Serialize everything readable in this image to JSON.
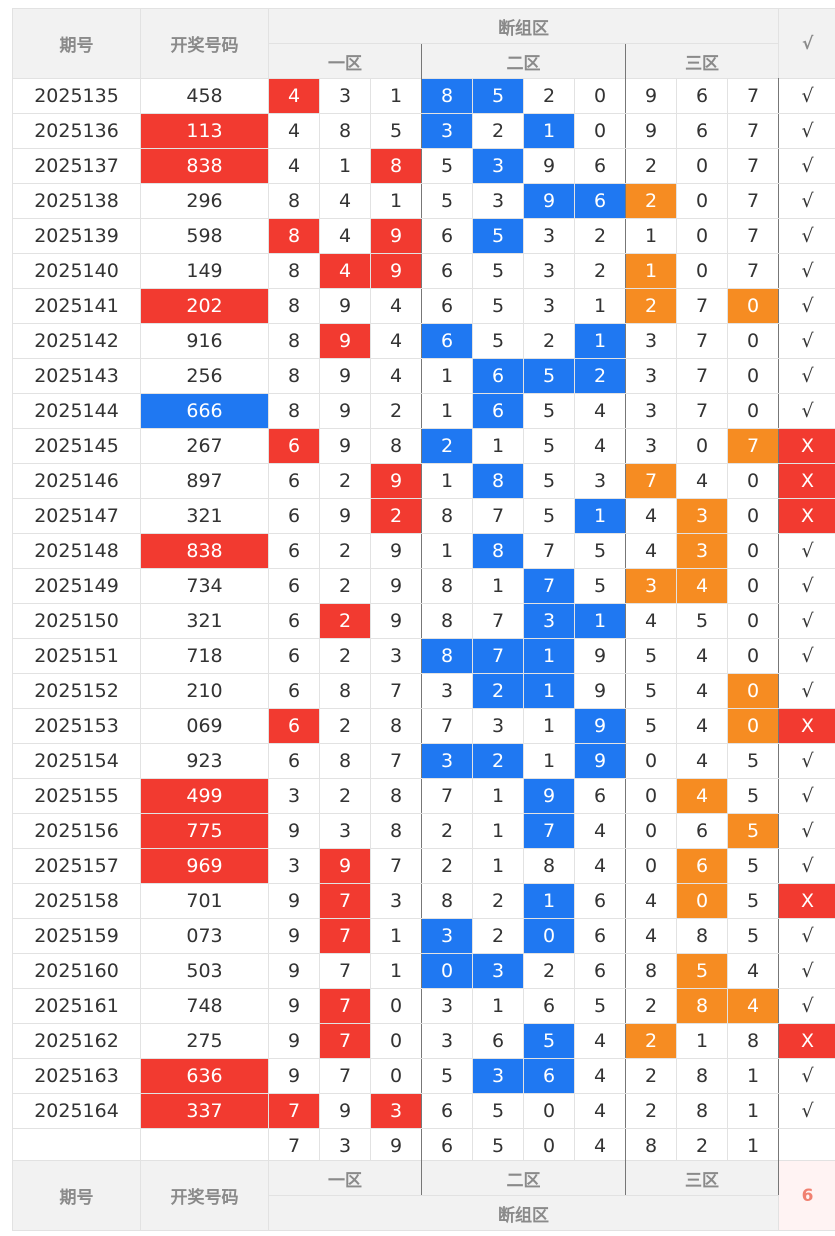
{
  "header": {
    "period": "期号",
    "number": "开奖号码",
    "section": "断组区",
    "zone1": "一区",
    "zone2": "二区",
    "zone3": "三区",
    "check": "√"
  },
  "rows": [
    {
      "period": "2025135",
      "number": "458",
      "nhl": "",
      "cells": [
        "4",
        "3",
        "1",
        "8",
        "5",
        "2",
        "0",
        "9",
        "6",
        "7"
      ],
      "hl": [
        "r",
        "",
        "",
        "b",
        "b",
        "",
        "",
        "",
        "",
        ""
      ],
      "status": "√"
    },
    {
      "period": "2025136",
      "number": "113",
      "nhl": "r",
      "cells": [
        "4",
        "8",
        "5",
        "3",
        "2",
        "1",
        "0",
        "9",
        "6",
        "7"
      ],
      "hl": [
        "",
        "",
        "",
        "b",
        "",
        "b",
        "",
        "",
        "",
        ""
      ],
      "status": "√"
    },
    {
      "period": "2025137",
      "number": "838",
      "nhl": "r",
      "cells": [
        "4",
        "1",
        "8",
        "5",
        "3",
        "9",
        "6",
        "2",
        "0",
        "7"
      ],
      "hl": [
        "",
        "",
        "r",
        "",
        "b",
        "",
        "",
        "",
        "",
        ""
      ],
      "status": "√"
    },
    {
      "period": "2025138",
      "number": "296",
      "nhl": "",
      "cells": [
        "8",
        "4",
        "1",
        "5",
        "3",
        "9",
        "6",
        "2",
        "0",
        "7"
      ],
      "hl": [
        "",
        "",
        "",
        "",
        "",
        "b",
        "b",
        "o",
        "",
        ""
      ],
      "status": "√"
    },
    {
      "period": "2025139",
      "number": "598",
      "nhl": "",
      "cells": [
        "8",
        "4",
        "9",
        "6",
        "5",
        "3",
        "2",
        "1",
        "0",
        "7"
      ],
      "hl": [
        "r",
        "",
        "r",
        "",
        "b",
        "",
        "",
        "",
        "",
        ""
      ],
      "status": "√"
    },
    {
      "period": "2025140",
      "number": "149",
      "nhl": "",
      "cells": [
        "8",
        "4",
        "9",
        "6",
        "5",
        "3",
        "2",
        "1",
        "0",
        "7"
      ],
      "hl": [
        "",
        "r",
        "r",
        "",
        "",
        "",
        "",
        "o",
        "",
        ""
      ],
      "status": "√"
    },
    {
      "period": "2025141",
      "number": "202",
      "nhl": "r",
      "cells": [
        "8",
        "9",
        "4",
        "6",
        "5",
        "3",
        "1",
        "2",
        "7",
        "0"
      ],
      "hl": [
        "",
        "",
        "",
        "",
        "",
        "",
        "",
        "o",
        "",
        "o"
      ],
      "status": "√"
    },
    {
      "period": "2025142",
      "number": "916",
      "nhl": "",
      "cells": [
        "8",
        "9",
        "4",
        "6",
        "5",
        "2",
        "1",
        "3",
        "7",
        "0"
      ],
      "hl": [
        "",
        "r",
        "",
        "b",
        "",
        "",
        "b",
        "",
        "",
        ""
      ],
      "status": "√"
    },
    {
      "period": "2025143",
      "number": "256",
      "nhl": "",
      "cells": [
        "8",
        "9",
        "4",
        "1",
        "6",
        "5",
        "2",
        "3",
        "7",
        "0"
      ],
      "hl": [
        "",
        "",
        "",
        "",
        "b",
        "b",
        "b",
        "",
        "",
        ""
      ],
      "status": "√"
    },
    {
      "period": "2025144",
      "number": "666",
      "nhl": "b",
      "cells": [
        "8",
        "9",
        "2",
        "1",
        "6",
        "5",
        "4",
        "3",
        "7",
        "0"
      ],
      "hl": [
        "",
        "",
        "",
        "",
        "b",
        "",
        "",
        "",
        "",
        ""
      ],
      "status": "√"
    },
    {
      "period": "2025145",
      "number": "267",
      "nhl": "",
      "cells": [
        "6",
        "9",
        "8",
        "2",
        "1",
        "5",
        "4",
        "3",
        "0",
        "7"
      ],
      "hl": [
        "r",
        "",
        "",
        "b",
        "",
        "",
        "",
        "",
        "",
        "o"
      ],
      "status": "X"
    },
    {
      "period": "2025146",
      "number": "897",
      "nhl": "",
      "cells": [
        "6",
        "2",
        "9",
        "1",
        "8",
        "5",
        "3",
        "7",
        "4",
        "0"
      ],
      "hl": [
        "",
        "",
        "r",
        "",
        "b",
        "",
        "",
        "o",
        "",
        ""
      ],
      "status": "X"
    },
    {
      "period": "2025147",
      "number": "321",
      "nhl": "",
      "cells": [
        "6",
        "9",
        "2",
        "8",
        "7",
        "5",
        "1",
        "4",
        "3",
        "0"
      ],
      "hl": [
        "",
        "",
        "r",
        "",
        "",
        "",
        "b",
        "",
        "o",
        ""
      ],
      "status": "X"
    },
    {
      "period": "2025148",
      "number": "838",
      "nhl": "r",
      "cells": [
        "6",
        "2",
        "9",
        "1",
        "8",
        "7",
        "5",
        "4",
        "3",
        "0"
      ],
      "hl": [
        "",
        "",
        "",
        "",
        "b",
        "",
        "",
        "",
        "o",
        ""
      ],
      "status": "√"
    },
    {
      "period": "2025149",
      "number": "734",
      "nhl": "",
      "cells": [
        "6",
        "2",
        "9",
        "8",
        "1",
        "7",
        "5",
        "3",
        "4",
        "0"
      ],
      "hl": [
        "",
        "",
        "",
        "",
        "",
        "b",
        "",
        "o",
        "o",
        ""
      ],
      "status": "√"
    },
    {
      "period": "2025150",
      "number": "321",
      "nhl": "",
      "cells": [
        "6",
        "2",
        "9",
        "8",
        "7",
        "3",
        "1",
        "4",
        "5",
        "0"
      ],
      "hl": [
        "",
        "r",
        "",
        "",
        "",
        "b",
        "b",
        "",
        "",
        ""
      ],
      "status": "√"
    },
    {
      "period": "2025151",
      "number": "718",
      "nhl": "",
      "cells": [
        "6",
        "2",
        "3",
        "8",
        "7",
        "1",
        "9",
        "5",
        "4",
        "0"
      ],
      "hl": [
        "",
        "",
        "",
        "b",
        "b",
        "b",
        "",
        "",
        "",
        ""
      ],
      "status": "√"
    },
    {
      "period": "2025152",
      "number": "210",
      "nhl": "",
      "cells": [
        "6",
        "8",
        "7",
        "3",
        "2",
        "1",
        "9",
        "5",
        "4",
        "0"
      ],
      "hl": [
        "",
        "",
        "",
        "",
        "b",
        "b",
        "",
        "",
        "",
        "o"
      ],
      "status": "√"
    },
    {
      "period": "2025153",
      "number": "069",
      "nhl": "",
      "cells": [
        "6",
        "2",
        "8",
        "7",
        "3",
        "1",
        "9",
        "5",
        "4",
        "0"
      ],
      "hl": [
        "r",
        "",
        "",
        "",
        "",
        "",
        "b",
        "",
        "",
        "o"
      ],
      "status": "X"
    },
    {
      "period": "2025154",
      "number": "923",
      "nhl": "",
      "cells": [
        "6",
        "8",
        "7",
        "3",
        "2",
        "1",
        "9",
        "0",
        "4",
        "5"
      ],
      "hl": [
        "",
        "",
        "",
        "b",
        "b",
        "",
        "b",
        "",
        "",
        ""
      ],
      "status": "√"
    },
    {
      "period": "2025155",
      "number": "499",
      "nhl": "r",
      "cells": [
        "3",
        "2",
        "8",
        "7",
        "1",
        "9",
        "6",
        "0",
        "4",
        "5"
      ],
      "hl": [
        "",
        "",
        "",
        "",
        "",
        "b",
        "",
        "",
        "o",
        ""
      ],
      "status": "√"
    },
    {
      "period": "2025156",
      "number": "775",
      "nhl": "r",
      "cells": [
        "9",
        "3",
        "8",
        "2",
        "1",
        "7",
        "4",
        "0",
        "6",
        "5"
      ],
      "hl": [
        "",
        "",
        "",
        "",
        "",
        "b",
        "",
        "",
        "",
        "o"
      ],
      "status": "√"
    },
    {
      "period": "2025157",
      "number": "969",
      "nhl": "r",
      "cells": [
        "3",
        "9",
        "7",
        "2",
        "1",
        "8",
        "4",
        "0",
        "6",
        "5"
      ],
      "hl": [
        "",
        "r",
        "",
        "",
        "",
        "",
        "",
        "",
        "o",
        ""
      ],
      "status": "√"
    },
    {
      "period": "2025158",
      "number": "701",
      "nhl": "",
      "cells": [
        "9",
        "7",
        "3",
        "8",
        "2",
        "1",
        "6",
        "4",
        "0",
        "5"
      ],
      "hl": [
        "",
        "r",
        "",
        "",
        "",
        "b",
        "",
        "",
        "o",
        ""
      ],
      "status": "X"
    },
    {
      "period": "2025159",
      "number": "073",
      "nhl": "",
      "cells": [
        "9",
        "7",
        "1",
        "3",
        "2",
        "0",
        "6",
        "4",
        "8",
        "5"
      ],
      "hl": [
        "",
        "r",
        "",
        "b",
        "",
        "b",
        "",
        "",
        "",
        ""
      ],
      "status": "√"
    },
    {
      "period": "2025160",
      "number": "503",
      "nhl": "",
      "cells": [
        "9",
        "7",
        "1",
        "0",
        "3",
        "2",
        "6",
        "8",
        "5",
        "4"
      ],
      "hl": [
        "",
        "",
        "",
        "b",
        "b",
        "",
        "",
        "",
        "o",
        ""
      ],
      "status": "√"
    },
    {
      "period": "2025161",
      "number": "748",
      "nhl": "",
      "cells": [
        "9",
        "7",
        "0",
        "3",
        "1",
        "6",
        "5",
        "2",
        "8",
        "4"
      ],
      "hl": [
        "",
        "r",
        "",
        "",
        "",
        "",
        "",
        "",
        "o",
        "o"
      ],
      "status": "√"
    },
    {
      "period": "2025162",
      "number": "275",
      "nhl": "",
      "cells": [
        "9",
        "7",
        "0",
        "3",
        "6",
        "5",
        "4",
        "2",
        "1",
        "8"
      ],
      "hl": [
        "",
        "r",
        "",
        "",
        "",
        "b",
        "",
        "o",
        "",
        ""
      ],
      "status": "X"
    },
    {
      "period": "2025163",
      "number": "636",
      "nhl": "r",
      "cells": [
        "9",
        "7",
        "0",
        "5",
        "3",
        "6",
        "4",
        "2",
        "8",
        "1"
      ],
      "hl": [
        "",
        "",
        "",
        "",
        "b",
        "b",
        "",
        "",
        "",
        ""
      ],
      "status": "√"
    },
    {
      "period": "2025164",
      "number": "337",
      "nhl": "r",
      "cells": [
        "7",
        "9",
        "3",
        "6",
        "5",
        "0",
        "4",
        "2",
        "8",
        "1"
      ],
      "hl": [
        "r",
        "",
        "r",
        "",
        "",
        "",
        "",
        "",
        "",
        ""
      ],
      "status": "√"
    },
    {
      "period": "",
      "number": "",
      "nhl": "",
      "cells": [
        "7",
        "3",
        "9",
        "6",
        "5",
        "0",
        "4",
        "8",
        "2",
        "1"
      ],
      "hl": [
        "",
        "",
        "",
        "",
        "",
        "",
        "",
        "",
        "",
        ""
      ],
      "status": ""
    }
  ],
  "footer": {
    "period": "期号",
    "number": "开奖号码",
    "zone1": "一区",
    "zone2": "二区",
    "zone3": "三区",
    "section": "断组区",
    "count": "6"
  },
  "colors": {
    "red": "#f23a30",
    "blue": "#1f78f2",
    "orange": "#f68c22"
  }
}
